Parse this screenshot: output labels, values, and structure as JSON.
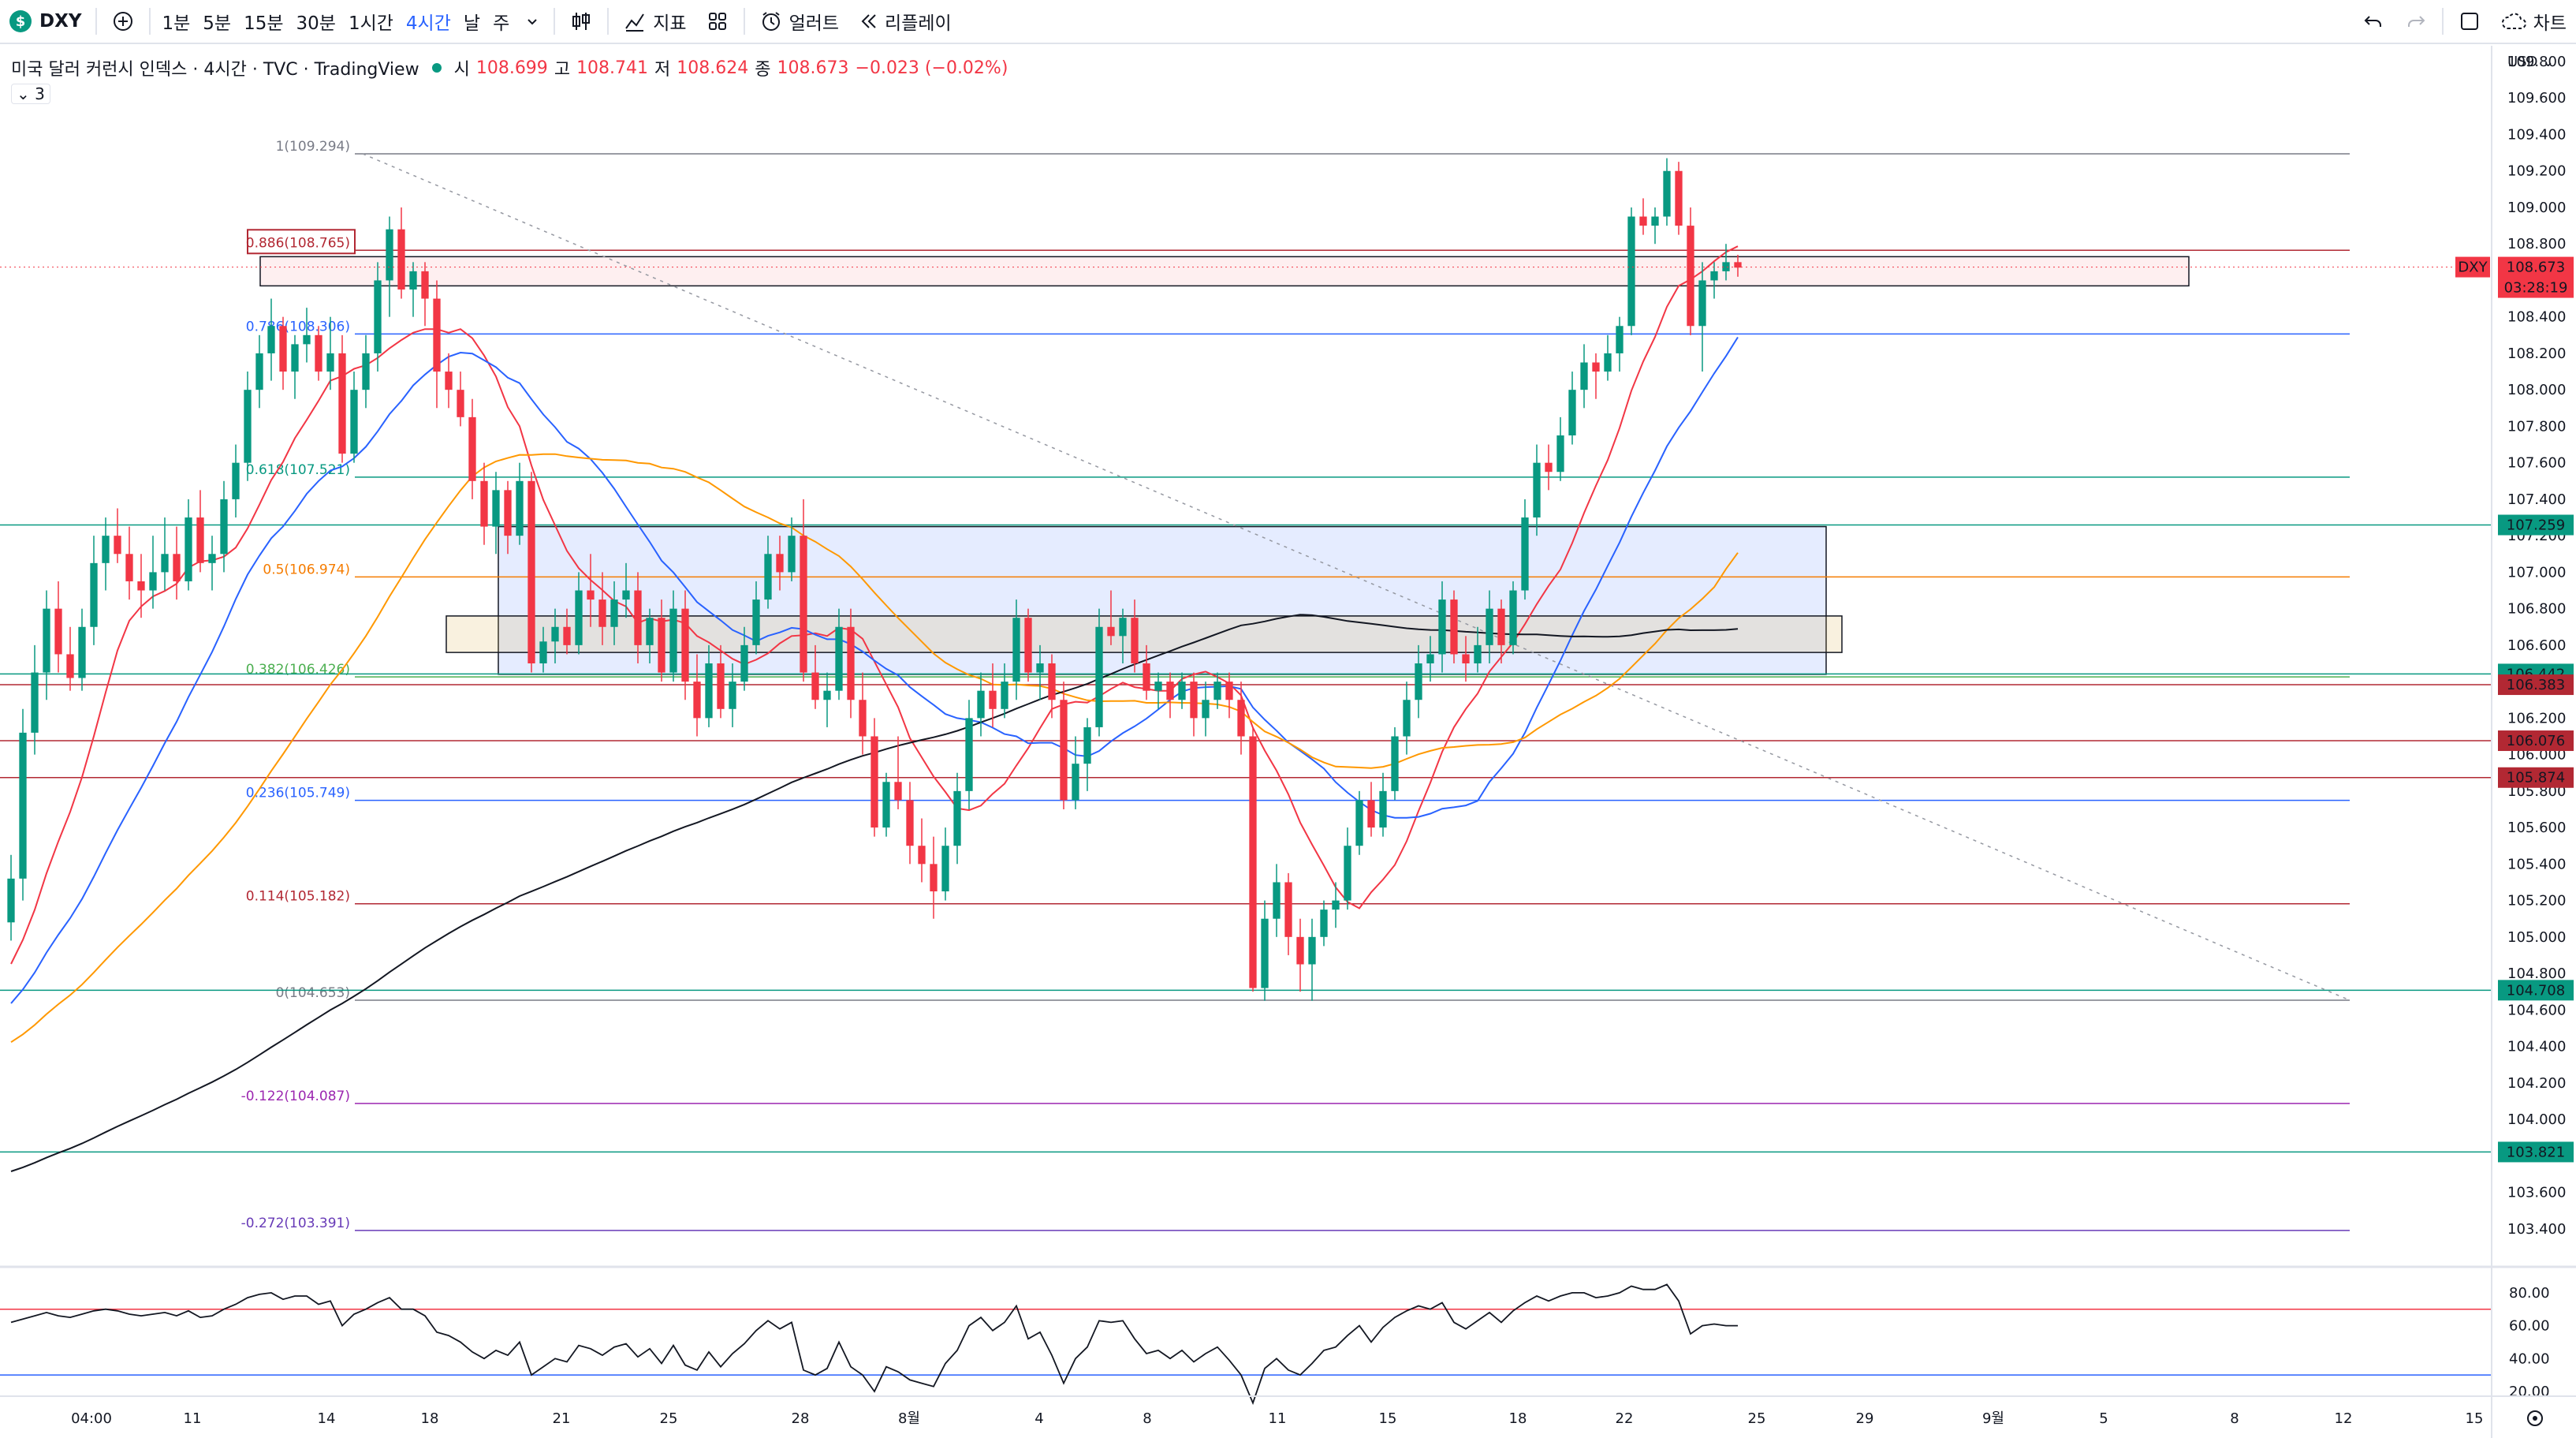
{
  "toolbar": {
    "symbol": "DXY",
    "symbol_badge": "$",
    "timeframes": [
      "1분",
      "5분",
      "15분",
      "30분",
      "1시간",
      "4시간",
      "날",
      "주"
    ],
    "active_timeframe": "4시간",
    "indicators_label": "지표",
    "alerts_label": "얼러트",
    "replay_label": "리플레이",
    "chart_label": "차트"
  },
  "legend": {
    "title": "미국 달러 커런시 인덱스 · 4시간 · TVC · TradingView",
    "open_label": "시",
    "open": "108.699",
    "high_label": "고",
    "high": "108.741",
    "low_label": "저",
    "low": "108.624",
    "close_label": "종",
    "close": "108.673",
    "change": "−0.023 (−0.02%)",
    "indicator_count": "3"
  },
  "chart_data": {
    "type": "candlestick",
    "symbol": "DXY",
    "timeframe": "4시간",
    "currency_label": "USD",
    "ylim": [
      103.2,
      109.8
    ],
    "y_ticks": [
      103.4,
      103.6,
      103.8,
      104.0,
      104.2,
      104.4,
      104.6,
      104.8,
      105.0,
      105.2,
      105.4,
      105.6,
      105.8,
      106.0,
      106.2,
      106.4,
      106.6,
      106.8,
      107.0,
      107.2,
      107.4,
      107.6,
      107.8,
      108.0,
      108.2,
      108.4,
      108.6,
      108.8,
      109.0,
      109.2,
      109.4,
      109.6,
      109.8
    ],
    "x_tick_labels": [
      "04:00",
      "11",
      "14",
      "18",
      "21",
      "25",
      "28",
      "8월",
      "4",
      "8",
      "11",
      "15",
      "18",
      "22",
      "25",
      "29",
      "9월",
      "5",
      "8",
      "12",
      "15"
    ],
    "fib_levels": [
      {
        "label": "1(109.294)",
        "price": 109.294,
        "color": "#787b86"
      },
      {
        "label": "0.886(108.765)",
        "price": 108.765,
        "color": "#b22833"
      },
      {
        "label": "0.786(108.306)",
        "price": 108.306,
        "color": "#2962ff"
      },
      {
        "label": "0.618(107.521)",
        "price": 107.521,
        "color": "#089981"
      },
      {
        "label": "0.5(106.974)",
        "price": 106.974,
        "color": "#f57c00"
      },
      {
        "label": "0.382(106.426)",
        "price": 106.426,
        "color": "#4caf50"
      },
      {
        "label": "0.236(105.749)",
        "price": 105.749,
        "color": "#2962ff"
      },
      {
        "label": "0.114(105.182)",
        "price": 105.182,
        "color": "#b22833"
      },
      {
        "label": "0(104.653)",
        "price": 104.653,
        "color": "#787b86"
      },
      {
        "label": "-0.122(104.087)",
        "price": 104.087,
        "color": "#9c27b0"
      },
      {
        "label": "-0.272(103.391)",
        "price": 103.391,
        "color": "#673ab7"
      }
    ],
    "horizontal_lines": [
      {
        "price": 107.259,
        "label": "107.259",
        "color": "#089981"
      },
      {
        "price": 106.442,
        "label": "106.442",
        "color": "#089981"
      },
      {
        "price": 106.383,
        "label": "106.383",
        "color": "#b22833"
      },
      {
        "price": 106.076,
        "label": "106.076",
        "color": "#b22833"
      },
      {
        "price": 105.874,
        "label": "105.874",
        "color": "#b22833"
      },
      {
        "price": 104.708,
        "label": "104.708",
        "color": "#089981"
      },
      {
        "price": 103.821,
        "label": "103.821",
        "color": "#089981"
      }
    ],
    "last_price": {
      "symbol": "DXY",
      "price": "108.673",
      "countdown": "03:28:19"
    },
    "zones": [
      {
        "name": "resistance-zone",
        "top": 108.73,
        "bottom": 108.57,
        "color": "#f23645"
      },
      {
        "name": "demand-zone-blue",
        "top": 107.25,
        "bottom": 106.44,
        "color": "#2962ff"
      },
      {
        "name": "demand-zone-beige",
        "top": 106.76,
        "bottom": 106.56,
        "color": "#e0b050"
      }
    ],
    "candles": [
      [
        105.08,
        105.45,
        104.98,
        105.32
      ],
      [
        105.32,
        106.25,
        105.2,
        106.12
      ],
      [
        106.12,
        106.6,
        106.0,
        106.45
      ],
      [
        106.45,
        106.9,
        106.3,
        106.8
      ],
      [
        106.8,
        106.95,
        106.45,
        106.55
      ],
      [
        106.55,
        106.7,
        106.35,
        106.42
      ],
      [
        106.42,
        106.8,
        106.35,
        106.7
      ],
      [
        106.7,
        107.2,
        106.6,
        107.05
      ],
      [
        107.05,
        107.3,
        106.9,
        107.2
      ],
      [
        107.2,
        107.35,
        107.05,
        107.1
      ],
      [
        107.1,
        107.25,
        106.85,
        106.95
      ],
      [
        106.95,
        107.1,
        106.75,
        106.9
      ],
      [
        106.9,
        107.2,
        106.8,
        107.0
      ],
      [
        107.0,
        107.3,
        106.9,
        107.1
      ],
      [
        107.1,
        107.25,
        106.85,
        106.95
      ],
      [
        106.95,
        107.4,
        106.9,
        107.3
      ],
      [
        107.3,
        107.45,
        107.0,
        107.05
      ],
      [
        107.05,
        107.2,
        106.9,
        107.1
      ],
      [
        107.1,
        107.5,
        107.0,
        107.4
      ],
      [
        107.4,
        107.7,
        107.3,
        107.6
      ],
      [
        107.6,
        108.1,
        107.5,
        108.0
      ],
      [
        108.0,
        108.3,
        107.9,
        108.2
      ],
      [
        108.2,
        108.5,
        108.05,
        108.35
      ],
      [
        108.35,
        108.4,
        108.0,
        108.1
      ],
      [
        108.1,
        108.3,
        107.95,
        108.25
      ],
      [
        108.25,
        108.45,
        108.15,
        108.3
      ],
      [
        108.3,
        108.35,
        108.05,
        108.1
      ],
      [
        108.1,
        108.4,
        108.0,
        108.2
      ],
      [
        108.2,
        108.3,
        107.6,
        107.65
      ],
      [
        107.65,
        108.1,
        107.6,
        108.0
      ],
      [
        108.0,
        108.3,
        107.9,
        108.2
      ],
      [
        108.2,
        108.7,
        108.1,
        108.6
      ],
      [
        108.6,
        108.95,
        108.4,
        108.88
      ],
      [
        108.88,
        109.0,
        108.5,
        108.55
      ],
      [
        108.55,
        108.7,
        108.4,
        108.65
      ],
      [
        108.65,
        108.7,
        108.35,
        108.5
      ],
      [
        108.5,
        108.6,
        107.9,
        108.1
      ],
      [
        108.1,
        108.2,
        107.9,
        108.0
      ],
      [
        108.0,
        108.1,
        107.8,
        107.85
      ],
      [
        107.85,
        107.95,
        107.4,
        107.5
      ],
      [
        107.5,
        107.6,
        107.15,
        107.25
      ],
      [
        107.25,
        107.55,
        107.1,
        107.45
      ],
      [
        107.45,
        107.5,
        107.1,
        107.2
      ],
      [
        107.2,
        107.6,
        107.15,
        107.5
      ],
      [
        107.5,
        107.55,
        106.45,
        106.5
      ],
      [
        106.5,
        106.7,
        106.45,
        106.62
      ],
      [
        106.62,
        106.8,
        106.5,
        106.7
      ],
      [
        106.7,
        106.8,
        106.55,
        106.6
      ],
      [
        106.6,
        107.0,
        106.55,
        106.9
      ],
      [
        106.9,
        107.1,
        106.7,
        106.85
      ],
      [
        106.85,
        107.0,
        106.6,
        106.7
      ],
      [
        106.7,
        106.95,
        106.6,
        106.85
      ],
      [
        106.85,
        107.05,
        106.75,
        106.9
      ],
      [
        106.9,
        107.0,
        106.5,
        106.6
      ],
      [
        106.6,
        106.8,
        106.5,
        106.75
      ],
      [
        106.75,
        106.85,
        106.4,
        106.45
      ],
      [
        106.45,
        106.9,
        106.4,
        106.8
      ],
      [
        106.8,
        106.9,
        106.3,
        106.4
      ],
      [
        106.4,
        106.55,
        106.1,
        106.2
      ],
      [
        106.2,
        106.6,
        106.15,
        106.5
      ],
      [
        106.5,
        106.6,
        106.2,
        106.25
      ],
      [
        106.25,
        106.5,
        106.15,
        106.4
      ],
      [
        106.4,
        106.7,
        106.35,
        106.6
      ],
      [
        106.6,
        106.95,
        106.55,
        106.85
      ],
      [
        106.85,
        107.2,
        106.8,
        107.1
      ],
      [
        107.1,
        107.2,
        106.9,
        107.0
      ],
      [
        107.0,
        107.3,
        106.95,
        107.2
      ],
      [
        107.2,
        107.4,
        106.4,
        106.45
      ],
      [
        106.45,
        106.6,
        106.25,
        106.3
      ],
      [
        106.3,
        106.45,
        106.15,
        106.35
      ],
      [
        106.35,
        106.8,
        106.3,
        106.7
      ],
      [
        106.7,
        106.8,
        106.2,
        106.3
      ],
      [
        106.3,
        106.45,
        106.0,
        106.1
      ],
      [
        106.1,
        106.2,
        105.55,
        105.6
      ],
      [
        105.6,
        105.9,
        105.55,
        105.85
      ],
      [
        105.85,
        106.1,
        105.7,
        105.75
      ],
      [
        105.75,
        105.85,
        105.4,
        105.5
      ],
      [
        105.5,
        105.65,
        105.3,
        105.4
      ],
      [
        105.4,
        105.55,
        105.1,
        105.25
      ],
      [
        105.25,
        105.6,
        105.2,
        105.5
      ],
      [
        105.5,
        105.9,
        105.4,
        105.8
      ],
      [
        105.8,
        106.3,
        105.7,
        106.2
      ],
      [
        106.2,
        106.45,
        106.1,
        106.35
      ],
      [
        106.35,
        106.5,
        106.15,
        106.25
      ],
      [
        106.25,
        106.5,
        106.2,
        106.4
      ],
      [
        106.4,
        106.85,
        106.3,
        106.75
      ],
      [
        106.75,
        106.8,
        106.4,
        106.45
      ],
      [
        106.45,
        106.6,
        106.3,
        106.5
      ],
      [
        106.5,
        106.55,
        106.2,
        106.3
      ],
      [
        106.3,
        106.4,
        105.7,
        105.75
      ],
      [
        105.75,
        106.1,
        105.7,
        105.95
      ],
      [
        105.95,
        106.2,
        105.8,
        106.15
      ],
      [
        106.15,
        106.8,
        106.1,
        106.7
      ],
      [
        106.7,
        106.9,
        106.6,
        106.65
      ],
      [
        106.65,
        106.8,
        106.5,
        106.75
      ],
      [
        106.75,
        106.85,
        106.45,
        106.5
      ],
      [
        106.5,
        106.6,
        106.3,
        106.35
      ],
      [
        106.35,
        106.45,
        106.25,
        106.4
      ],
      [
        106.4,
        106.45,
        106.2,
        106.3
      ],
      [
        106.3,
        106.45,
        106.25,
        106.4
      ],
      [
        106.4,
        106.45,
        106.1,
        106.2
      ],
      [
        106.2,
        106.4,
        106.1,
        106.3
      ],
      [
        106.3,
        106.45,
        106.25,
        106.4
      ],
      [
        106.4,
        106.45,
        106.2,
        106.3
      ],
      [
        106.3,
        106.4,
        106.0,
        106.1
      ],
      [
        106.1,
        106.15,
        104.7,
        104.72
      ],
      [
        104.72,
        105.2,
        104.65,
        105.1
      ],
      [
        105.1,
        105.4,
        105.0,
        105.3
      ],
      [
        105.3,
        105.35,
        104.9,
        105.0
      ],
      [
        105.0,
        105.1,
        104.7,
        104.85
      ],
      [
        104.85,
        105.1,
        104.65,
        105.0
      ],
      [
        105.0,
        105.2,
        104.95,
        105.15
      ],
      [
        105.15,
        105.3,
        105.05,
        105.2
      ],
      [
        105.2,
        105.6,
        105.15,
        105.5
      ],
      [
        105.5,
        105.8,
        105.45,
        105.75
      ],
      [
        105.75,
        105.85,
        105.55,
        105.6
      ],
      [
        105.6,
        105.9,
        105.55,
        105.8
      ],
      [
        105.8,
        106.15,
        105.75,
        106.1
      ],
      [
        106.1,
        106.4,
        106.0,
        106.3
      ],
      [
        106.3,
        106.6,
        106.2,
        106.5
      ],
      [
        106.5,
        106.65,
        106.4,
        106.55
      ],
      [
        106.55,
        106.95,
        106.45,
        106.85
      ],
      [
        106.85,
        106.9,
        106.5,
        106.55
      ],
      [
        106.55,
        106.65,
        106.4,
        106.5
      ],
      [
        106.5,
        106.7,
        106.45,
        106.6
      ],
      [
        106.6,
        106.9,
        106.5,
        106.8
      ],
      [
        106.8,
        106.85,
        106.5,
        106.6
      ],
      [
        106.6,
        106.95,
        106.55,
        106.9
      ],
      [
        106.9,
        107.4,
        106.85,
        107.3
      ],
      [
        107.3,
        107.7,
        107.2,
        107.6
      ],
      [
        107.6,
        107.7,
        107.45,
        107.55
      ],
      [
        107.55,
        107.85,
        107.5,
        107.75
      ],
      [
        107.75,
        108.1,
        107.7,
        108.0
      ],
      [
        108.0,
        108.25,
        107.9,
        108.15
      ],
      [
        108.15,
        108.2,
        107.95,
        108.1
      ],
      [
        108.1,
        108.3,
        108.05,
        108.2
      ],
      [
        108.2,
        108.4,
        108.1,
        108.35
      ],
      [
        108.35,
        109.0,
        108.3,
        108.95
      ],
      [
        108.95,
        109.05,
        108.85,
        108.9
      ],
      [
        108.9,
        109.0,
        108.8,
        108.95
      ],
      [
        108.95,
        109.27,
        108.9,
        109.2
      ],
      [
        109.2,
        109.25,
        108.85,
        108.9
      ],
      [
        108.9,
        109.0,
        108.3,
        108.35
      ],
      [
        108.35,
        108.7,
        108.1,
        108.6
      ],
      [
        108.6,
        108.7,
        108.5,
        108.65
      ],
      [
        108.65,
        108.8,
        108.6,
        108.7
      ],
      [
        108.7,
        108.74,
        108.62,
        108.67
      ]
    ],
    "moving_averages": [
      {
        "name": "ma-red",
        "color": "#f23645"
      },
      {
        "name": "ma-blue",
        "color": "#2962ff"
      },
      {
        "name": "ma-orange",
        "color": "#ff9800"
      },
      {
        "name": "ma-black",
        "color": "#131722"
      }
    ],
    "rsi": {
      "ylim": [
        20,
        90
      ],
      "y_ticks": [
        80,
        60,
        40,
        20
      ],
      "upper": 70,
      "lower": 30,
      "values": [
        62,
        64,
        66,
        68,
        66,
        65,
        67,
        69,
        70,
        69,
        67,
        66,
        67,
        68,
        66,
        69,
        65,
        66,
        70,
        73,
        77,
        79,
        80,
        76,
        78,
        78,
        73,
        75,
        60,
        67,
        70,
        74,
        77,
        70,
        70,
        66,
        56,
        54,
        50,
        44,
        40,
        45,
        42,
        50,
        30,
        35,
        40,
        38,
        48,
        46,
        42,
        47,
        49,
        41,
        46,
        37,
        48,
        36,
        33,
        44,
        35,
        43,
        49,
        57,
        63,
        58,
        62,
        33,
        30,
        34,
        50,
        35,
        30,
        20,
        35,
        32,
        27,
        25,
        23,
        37,
        45,
        60,
        65,
        57,
        62,
        72,
        52,
        56,
        42,
        25,
        40,
        47,
        63,
        62,
        63,
        52,
        43,
        45,
        40,
        45,
        38,
        43,
        47,
        39,
        30,
        13,
        34,
        40,
        33,
        30,
        37,
        45,
        47,
        54,
        60,
        50,
        59,
        65,
        69,
        72,
        70,
        74,
        62,
        58,
        63,
        68,
        62,
        69,
        74,
        78,
        75,
        78,
        80,
        80,
        77,
        78,
        80,
        84,
        82,
        82,
        85,
        75,
        55,
        60,
        61,
        60,
        60
      ]
    }
  }
}
